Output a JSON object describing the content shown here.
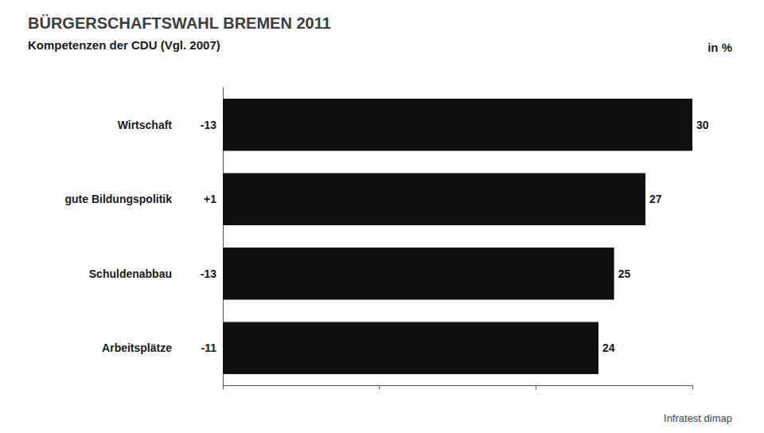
{
  "chart_data": {
    "type": "bar",
    "orientation": "horizontal",
    "title": "BÜRGERSCHAFTSWAHL BREMEN 2011",
    "subtitle": "Kompetenzen der CDU (Vgl. 2007)",
    "annotations": [
      "in %",
      "Infratest dimap"
    ],
    "categories": [
      "Wirtschaft",
      "gute Bildungspolitik",
      "Schuldenabbau",
      "Arbeitsplätze"
    ],
    "values": [
      30,
      27,
      25,
      24
    ],
    "changes": [
      -13,
      1,
      -13,
      -11
    ],
    "change_labels": [
      "-13",
      "+1",
      "-13",
      "-11"
    ],
    "color": "#111111",
    "xlim": [
      0,
      30
    ],
    "xticks": [
      0,
      10,
      20,
      30
    ],
    "grid": false,
    "data_labels": true,
    "tick_labels": "y"
  }
}
